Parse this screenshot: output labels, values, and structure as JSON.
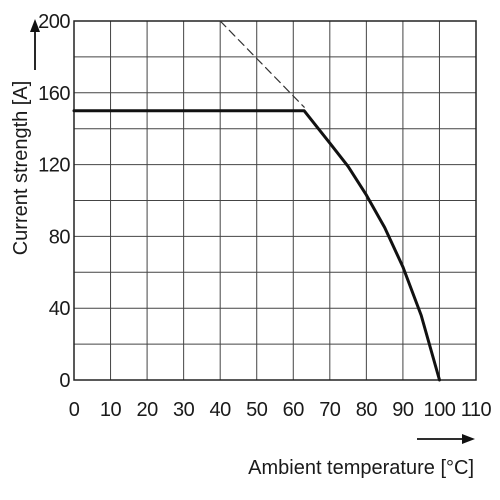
{
  "chart_data": {
    "type": "line",
    "title": "",
    "xlabel": "Ambient temperature [°C]",
    "ylabel": "Current strength [A]",
    "xlim": [
      0,
      110
    ],
    "ylim": [
      0,
      200
    ],
    "x_ticks": [
      "0",
      "10",
      "20",
      "30",
      "40",
      "50",
      "60",
      "70",
      "80",
      "90",
      "100",
      "110"
    ],
    "y_ticks": [
      "0",
      "40",
      "80",
      "120",
      "160",
      "200"
    ],
    "grid": true,
    "series": [
      {
        "style": "solid",
        "color": "#111111",
        "points": [
          [
            0,
            150
          ],
          [
            63,
            150
          ],
          [
            70,
            132
          ],
          [
            75,
            119
          ],
          [
            80,
            103
          ],
          [
            85,
            85
          ],
          [
            90,
            63
          ],
          [
            95,
            36
          ],
          [
            100,
            0
          ]
        ]
      },
      {
        "style": "dashed",
        "color": "#333333",
        "points": [
          [
            40,
            200
          ],
          [
            63,
            152
          ]
        ]
      }
    ]
  }
}
